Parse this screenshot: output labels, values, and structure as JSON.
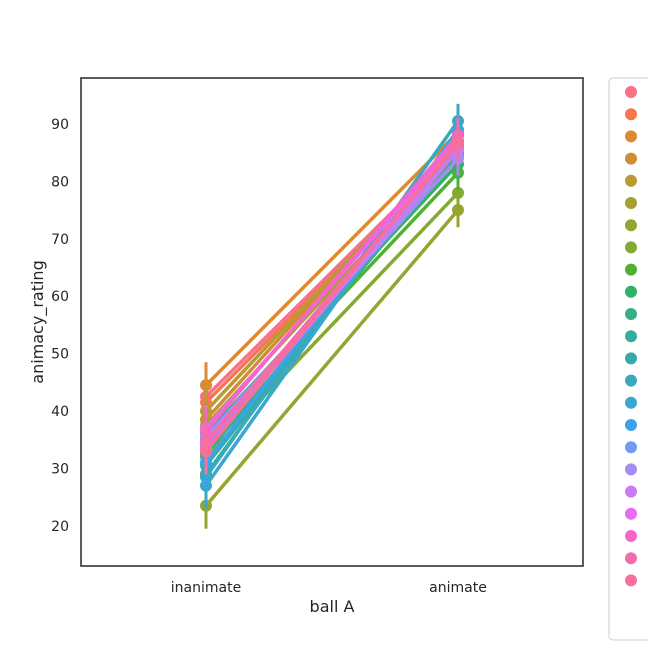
{
  "chart_data": {
    "type": "line",
    "title": "",
    "xlabel": "ball A",
    "ylabel": "animacy_rating",
    "categories": [
      "inanimate",
      "animate"
    ],
    "ylim": [
      13,
      98
    ],
    "yticks": [
      20,
      30,
      40,
      50,
      60,
      70,
      80,
      90
    ],
    "grid": false,
    "legend_position": "right",
    "error_bars": true,
    "series": [
      {
        "color": "#f77189",
        "values": [
          42.5,
          86.0
        ]
      },
      {
        "color": "#f7754f",
        "values": [
          41.5,
          85.5
        ]
      },
      {
        "color": "#dd8a32",
        "values": [
          44.5,
          88.5
        ]
      },
      {
        "color": "#cc8f32",
        "values": [
          38.5,
          87.0
        ]
      },
      {
        "color": "#bb9832",
        "values": [
          40.0,
          86.5
        ]
      },
      {
        "color": "#a79f31",
        "values": [
          37.5,
          85.0
        ]
      },
      {
        "color": "#97a431",
        "values": [
          23.5,
          75.0
        ]
      },
      {
        "color": "#84ab31",
        "values": [
          32.0,
          78.0
        ]
      },
      {
        "color": "#50b131",
        "values": [
          35.0,
          81.5
        ]
      },
      {
        "color": "#32b166",
        "values": [
          36.0,
          83.0
        ]
      },
      {
        "color": "#34af8a",
        "values": [
          32.5,
          84.5
        ]
      },
      {
        "color": "#35ad9c",
        "values": [
          30.5,
          86.0
        ]
      },
      {
        "color": "#36abab",
        "values": [
          29.0,
          88.0
        ]
      },
      {
        "color": "#38aabc",
        "values": [
          28.5,
          90.5
        ]
      },
      {
        "color": "#39a7d0",
        "values": [
          27.0,
          89.0
        ]
      },
      {
        "color": "#3ba3ec",
        "values": [
          31.0,
          88.0
        ]
      },
      {
        "color": "#6e9bf4",
        "values": [
          34.0,
          86.5
        ]
      },
      {
        "color": "#a48cf4",
        "values": [
          35.5,
          84.0
        ]
      },
      {
        "color": "#cc7af4",
        "values": [
          33.5,
          85.5
        ]
      },
      {
        "color": "#e86bf3",
        "values": [
          37.0,
          87.0
        ]
      },
      {
        "color": "#f565cc",
        "values": [
          36.5,
          88.0
        ]
      },
      {
        "color": "#f66bad",
        "values": [
          34.5,
          86.5
        ]
      },
      {
        "color": "#f7709a",
        "values": [
          33.0,
          87.0
        ]
      }
    ]
  }
}
